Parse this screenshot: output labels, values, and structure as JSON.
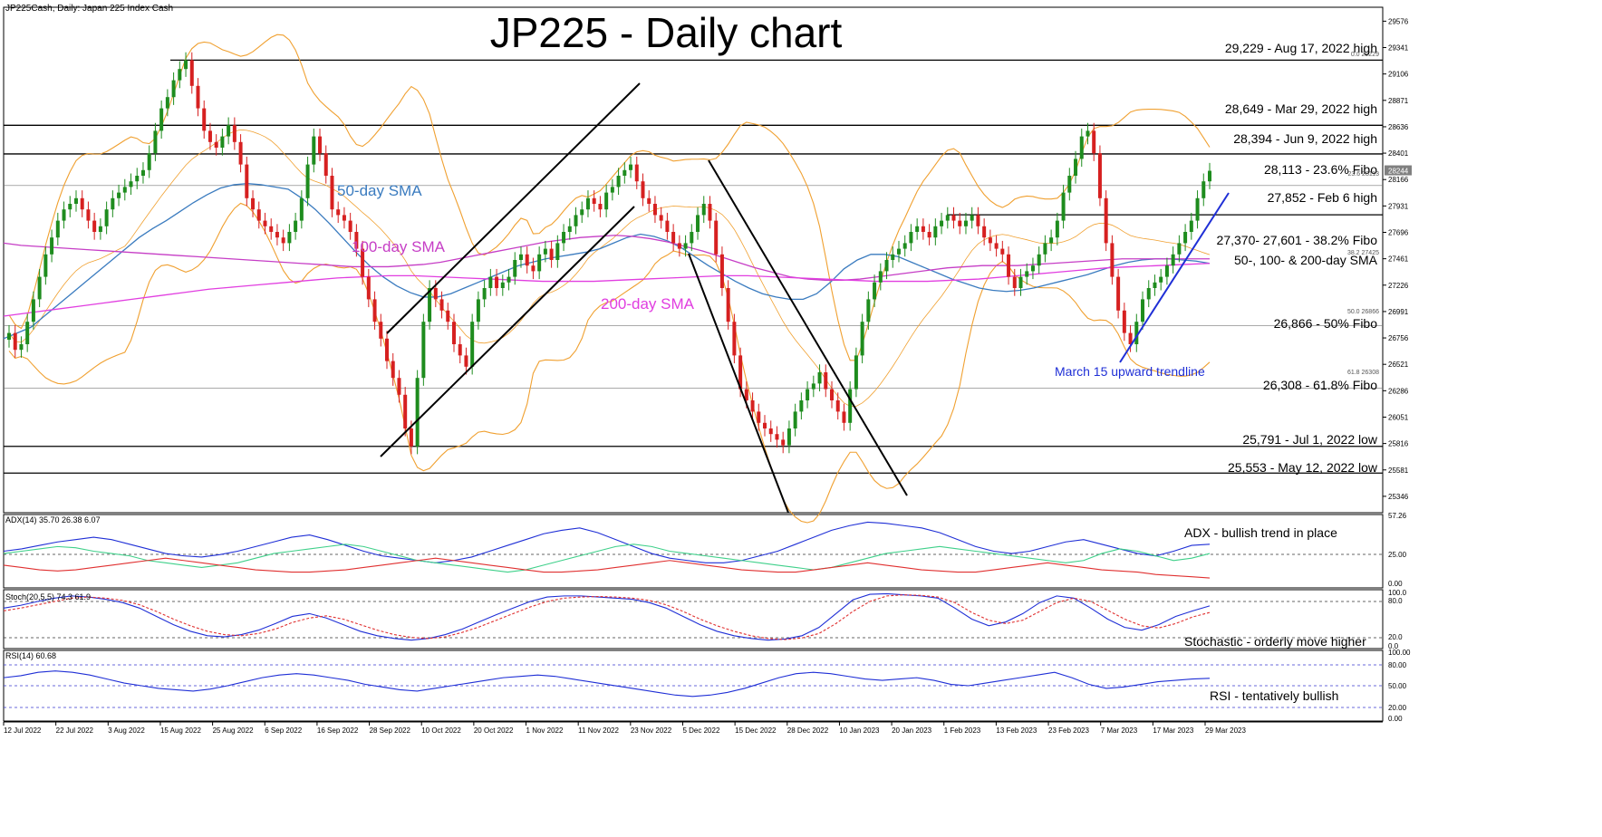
{
  "header": {
    "symbol_line": "JP225Cash, Daily:  Japan 225 Index Cash",
    "title": "JP225 - Daily chart"
  },
  "chart_data": {
    "type": "candlestick",
    "title": "JP225 - Daily chart",
    "symbol": "JP225Cash, Daily:  Japan 225 Index Cash",
    "price_axis": {
      "ylim": [
        25200,
        29700
      ],
      "ticks": [
        29576,
        29341,
        29106,
        28871,
        28636,
        28401,
        28166,
        27931,
        27696,
        27461,
        27226,
        26991,
        26756,
        26521,
        26286,
        26051,
        25816,
        25581,
        25346
      ],
      "current_price": "28244"
    },
    "x_axis": {
      "labels": [
        "12 Jul 2022",
        "22 Jul 2022",
        "3 Aug 2022",
        "15 Aug 2022",
        "25 Aug 2022",
        "6 Sep 2022",
        "16 Sep 2022",
        "28 Sep 2022",
        "10 Oct 2022",
        "20 Oct 2022",
        "1 Nov 2022",
        "11 Nov 2022",
        "23 Nov 2022",
        "5 Dec 2022",
        "15 Dec 2022",
        "28 Dec 2022",
        "10 Jan 2023",
        "20 Jan 2023",
        "1 Feb 2023",
        "13 Feb 2023",
        "23 Feb 2023",
        "7 Mar 2023",
        "17 Mar 2023",
        "29 Mar 2023"
      ]
    },
    "series_close": [
      26800,
      26650,
      26700,
      26900,
      27100,
      27300,
      27500,
      27650,
      27800,
      27900,
      27950,
      28000,
      27900,
      27800,
      27700,
      27750,
      27900,
      28000,
      28050,
      28100,
      28150,
      28200,
      28250,
      28400,
      28600,
      28800,
      28900,
      29050,
      29150,
      29229,
      29000,
      28800,
      28600,
      28500,
      28450,
      28550,
      28650,
      28500,
      28300,
      28000,
      27900,
      27800,
      27750,
      27700,
      27650,
      27600,
      27700,
      27800,
      28000,
      28300,
      28550,
      28400,
      28200,
      27900,
      27850,
      27800,
      27700,
      27550,
      27300,
      27100,
      26900,
      26750,
      26550,
      26400,
      26250,
      25950,
      25791,
      26400,
      26900,
      27200,
      27100,
      27000,
      26900,
      26700,
      26600,
      26500,
      26900,
      27100,
      27200,
      27300,
      27200,
      27250,
      27300,
      27450,
      27500,
      27400,
      27350,
      27500,
      27550,
      27450,
      27600,
      27700,
      27750,
      27850,
      27900,
      28000,
      27950,
      27900,
      28050,
      28100,
      28200,
      28250,
      28300,
      28150,
      28000,
      27950,
      27850,
      27800,
      27700,
      27600,
      27550,
      27600,
      27700,
      27850,
      27950,
      27800,
      27500,
      27200,
      26900,
      26600,
      26300,
      26200,
      26100,
      26000,
      25950,
      25900,
      25850,
      25800,
      25950,
      26100,
      26200,
      26300,
      26350,
      26450,
      26300,
      26200,
      26100,
      26000,
      26300,
      26600,
      26900,
      27100,
      27250,
      27350,
      27450,
      27500,
      27550,
      27600,
      27700,
      27750,
      27700,
      27650,
      27750,
      27800,
      27850,
      27800,
      27750,
      27800,
      27850,
      27750,
      27650,
      27600,
      27550,
      27500,
      27300,
      27200,
      27300,
      27350,
      27400,
      27500,
      27600,
      27650,
      27800,
      28050,
      28200,
      28350,
      28550,
      28600,
      28400,
      28000,
      27600,
      27300,
      27000,
      26800,
      26700,
      26900,
      27100,
      27200,
      27250,
      27300,
      27400,
      27500,
      27600,
      27700,
      27800,
      28000,
      28150,
      28244
    ],
    "sma": [
      {
        "name": "50-day SMA",
        "color": "#3a7bbf",
        "values": [
          26750,
          26800,
          26850,
          26950,
          27050,
          27150,
          27250,
          27350,
          27450,
          27550,
          27650,
          27730,
          27800,
          27880,
          27960,
          28030,
          28090,
          28120,
          28130,
          28120,
          28100,
          28080,
          28000,
          27900,
          27780,
          27650,
          27520,
          27400,
          27300,
          27220,
          27160,
          27120,
          27120,
          27150,
          27200,
          27250,
          27300,
          27350,
          27400,
          27430,
          27460,
          27480,
          27500,
          27520,
          27550,
          27600,
          27650,
          27680,
          27660,
          27620,
          27560,
          27480,
          27400,
          27330,
          27260,
          27200,
          27150,
          27120,
          27100,
          27100,
          27150,
          27250,
          27370,
          27450,
          27500,
          27500,
          27480,
          27430,
          27380,
          27330,
          27280,
          27240,
          27200,
          27180,
          27170,
          27180,
          27200,
          27230,
          27260,
          27290,
          27320,
          27360,
          27400,
          27430,
          27450,
          27460,
          27460,
          27450,
          27440,
          27420
        ]
      },
      {
        "name": "100-day SMA",
        "color": "#c63ec6",
        "values": [
          27600,
          27580,
          27570,
          27560,
          27550,
          27540,
          27530,
          27520,
          27510,
          27500,
          27490,
          27480,
          27470,
          27460,
          27450,
          27440,
          27430,
          27420,
          27410,
          27400,
          27390,
          27390,
          27390,
          27400,
          27410,
          27430,
          27460,
          27490,
          27520,
          27550,
          27580,
          27610,
          27630,
          27650,
          27660,
          27670,
          27660,
          27640,
          27610,
          27570,
          27530,
          27480,
          27430,
          27380,
          27340,
          27300,
          27280,
          27270,
          27270,
          27280,
          27300,
          27320,
          27340,
          27360,
          27380,
          27390,
          27400,
          27400,
          27400,
          27410,
          27420,
          27430,
          27440,
          27450,
          27460,
          27460,
          27460,
          27460,
          27460,
          27460
        ]
      },
      {
        "name": "200-day SMA",
        "color": "#e13ee0",
        "values": [
          26950,
          26980,
          27010,
          27040,
          27070,
          27100,
          27130,
          27160,
          27190,
          27210,
          27230,
          27250,
          27270,
          27290,
          27300,
          27310,
          27310,
          27300,
          27290,
          27280,
          27270,
          27260,
          27260,
          27260,
          27270,
          27280,
          27290,
          27300,
          27310,
          27310,
          27300,
          27290,
          27280,
          27270,
          27260,
          27260,
          27260,
          27270,
          27280,
          27300,
          27320,
          27340,
          27360,
          27380,
          27390,
          27400,
          27410,
          27420
        ]
      }
    ],
    "horizontal_levels": [
      {
        "price": 29229,
        "label": "29,229 - Aug 17, 2022 high"
      },
      {
        "price": 28649,
        "label": "28,649 - Mar 29, 2022 high"
      },
      {
        "price": 28394,
        "label": "28,394 - Jun 9, 2022 high"
      },
      {
        "price": 28113,
        "label": "28,113 - 23.6% Fibo"
      },
      {
        "price": 27852,
        "label": "27,852 - Feb 6 high"
      },
      {
        "price": 27425,
        "label": "27,370- 27,601 - 38.2% Fibo"
      },
      {
        "price": 27430,
        "label": "50-, 100- & 200-day SMA"
      },
      {
        "price": 26866,
        "label": "26,866 - 50% Fibo"
      },
      {
        "price": 26308,
        "label": "26,308 - 61.8% Fibo"
      },
      {
        "price": 25791,
        "label": "25,791 - Jul 1, 2022 low"
      },
      {
        "price": 25553,
        "label": "25,553 - May 12, 2022 low"
      }
    ],
    "fibo_tags": [
      "61.8 26308",
      "50.0 26866",
      "38.2 27425",
      "23.6 28113",
      "0.0 29229"
    ],
    "annotations": {
      "sma50": "50-day SMA",
      "sma100": "100-day SMA",
      "sma200": "200-day SMA",
      "trendline": "March 15 upward trendline"
    },
    "indicators": {
      "adx": {
        "header": "ADX(14) 35.70 26.38 6.07",
        "note": "ADX - bullish trend in place",
        "ylim": [
          0,
          60
        ],
        "ticks": [
          "57.26",
          "25.00",
          "0.00"
        ],
        "adx": [
          30,
          32,
          35,
          38,
          40,
          42,
          40,
          36,
          32,
          28,
          26,
          25,
          27,
          30,
          34,
          38,
          42,
          44,
          40,
          35,
          30,
          26,
          24,
          22,
          20,
          22,
          25,
          30,
          35,
          40,
          45,
          48,
          50,
          46,
          40,
          34,
          28,
          24,
          22,
          20,
          20,
          22,
          26,
          30,
          36,
          42,
          48,
          52,
          55,
          54,
          52,
          50,
          46,
          40,
          34,
          30,
          28,
          30,
          34,
          38,
          40,
          36,
          32,
          28,
          26,
          30,
          35,
          36
        ],
        "plus_di": [
          28,
          30,
          32,
          34,
          33,
          30,
          28,
          26,
          22,
          20,
          18,
          16,
          18,
          20,
          24,
          28,
          30,
          32,
          34,
          36,
          34,
          30,
          26,
          22,
          20,
          18,
          16,
          14,
          12,
          14,
          18,
          22,
          26,
          30,
          34,
          36,
          34,
          30,
          28,
          26,
          24,
          22,
          20,
          18,
          16,
          14,
          16,
          20,
          24,
          28,
          30,
          32,
          34,
          32,
          30,
          28,
          26,
          24,
          22,
          20,
          22,
          28,
          32,
          30,
          26,
          22,
          24,
          28
        ],
        "minus_di": [
          18,
          16,
          14,
          13,
          14,
          16,
          18,
          20,
          22,
          24,
          22,
          20,
          18,
          16,
          14,
          13,
          12,
          12,
          13,
          14,
          16,
          18,
          20,
          22,
          24,
          22,
          20,
          18,
          16,
          14,
          12,
          12,
          13,
          14,
          16,
          18,
          20,
          22,
          20,
          18,
          16,
          14,
          13,
          12,
          12,
          14,
          16,
          18,
          20,
          18,
          16,
          14,
          13,
          12,
          12,
          14,
          16,
          18,
          20,
          18,
          16,
          14,
          13,
          12,
          10,
          9,
          8,
          7
        ]
      },
      "stochastic": {
        "header": "Stoch(20,5,5) 74.3 61.9",
        "note": "Stochastic - orderly move higher",
        "ticks": [
          "100.0",
          "80.0",
          "20.0",
          "0.0"
        ],
        "k": [
          70,
          75,
          82,
          88,
          92,
          90,
          86,
          80,
          70,
          55,
          40,
          28,
          20,
          18,
          22,
          30,
          42,
          55,
          60,
          52,
          40,
          28,
          20,
          15,
          12,
          15,
          22,
          32,
          45,
          58,
          70,
          82,
          90,
          92,
          92,
          90,
          88,
          86,
          80,
          70,
          55,
          40,
          28,
          20,
          15,
          12,
          14,
          20,
          35,
          60,
          85,
          95,
          96,
          94,
          92,
          88,
          70,
          50,
          38,
          45,
          60,
          80,
          92,
          88,
          70,
          50,
          35,
          30,
          40,
          55,
          65,
          74
        ],
        "d": [
          65,
          70,
          76,
          82,
          88,
          90,
          88,
          84,
          76,
          64,
          50,
          38,
          28,
          22,
          20,
          24,
          32,
          44,
          52,
          56,
          50,
          40,
          30,
          22,
          17,
          15,
          18,
          26,
          36,
          48,
          60,
          72,
          82,
          88,
          90,
          91,
          90,
          88,
          84,
          76,
          64,
          50,
          38,
          28,
          20,
          15,
          13,
          16,
          24,
          42,
          64,
          82,
          92,
          94,
          93,
          90,
          80,
          62,
          48,
          42,
          48,
          64,
          80,
          88,
          82,
          66,
          50,
          38,
          34,
          42,
          54,
          62
        ]
      },
      "rsi": {
        "header": "RSI(14) 60.68",
        "note": "RSI - tentatively bullish",
        "ticks": [
          "100.00",
          "80.00",
          "50.00",
          "20.00",
          "0.00"
        ],
        "values": [
          62,
          65,
          70,
          72,
          70,
          66,
          60,
          54,
          50,
          46,
          44,
          42,
          45,
          50,
          56,
          62,
          66,
          68,
          66,
          62,
          58,
          52,
          48,
          44,
          42,
          46,
          50,
          54,
          58,
          62,
          64,
          66,
          64,
          60,
          56,
          52,
          48,
          44,
          40,
          36,
          34,
          36,
          40,
          46,
          54,
          62,
          68,
          70,
          68,
          64,
          60,
          58,
          60,
          62,
          58,
          52,
          50,
          54,
          58,
          62,
          66,
          70,
          62,
          52,
          46,
          48,
          52,
          56,
          58,
          60,
          61
        ]
      }
    }
  }
}
